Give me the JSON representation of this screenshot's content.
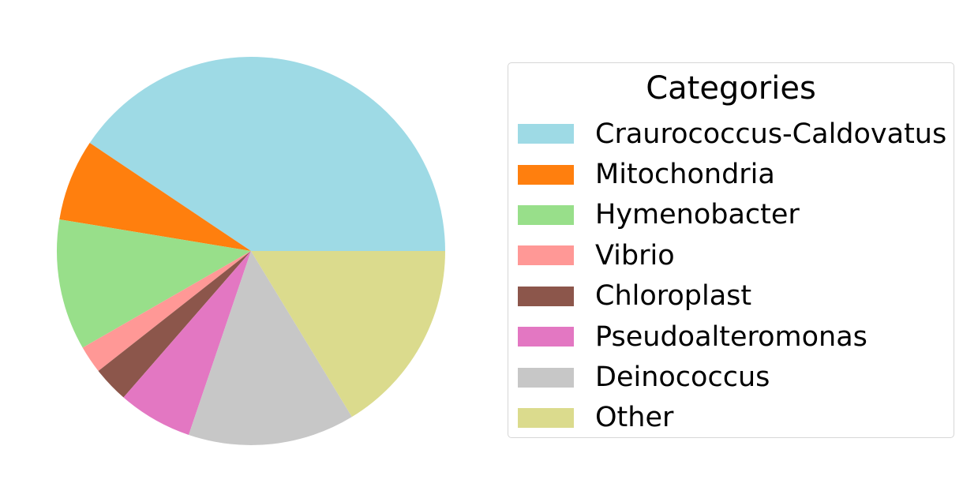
{
  "chart_data": {
    "type": "pie",
    "start_angle_deg": 0,
    "direction": "counterclockwise",
    "legend_title": "Categories",
    "legend_placement": "right",
    "slices": [
      {
        "label": "Craurococcus-Caldovatus",
        "value": 40.6,
        "color": "#9edae5"
      },
      {
        "label": "Mitochondria",
        "value": 6.8,
        "color": "#ff7f0e"
      },
      {
        "label": "Hymenobacter",
        "value": 10.9,
        "color": "#98df8a"
      },
      {
        "label": "Vibrio",
        "value": 2.3,
        "color": "#ff9896"
      },
      {
        "label": "Chloroplast",
        "value": 3.0,
        "color": "#8c564b"
      },
      {
        "label": "Pseudoalteromonas",
        "value": 6.2,
        "color": "#e377c2"
      },
      {
        "label": "Deinococcus",
        "value": 13.9,
        "color": "#c7c7c7"
      },
      {
        "label": "Other",
        "value": 16.3,
        "color": "#dbdb8d"
      }
    ]
  }
}
